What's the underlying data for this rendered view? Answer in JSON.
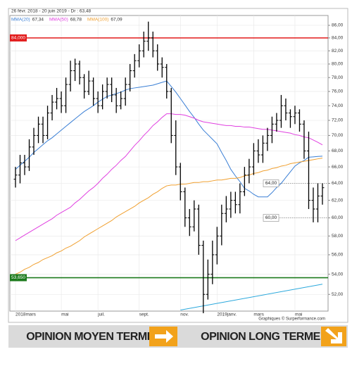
{
  "chart_data": {
    "type": "ohlc",
    "subtitle": "26 févr. 2018 - 20 juin 2019 - Dr : 63,48",
    "categories": [
      "2018mars",
      null,
      null,
      null,
      null,
      null,
      null,
      null,
      null,
      null,
      "mai",
      null,
      null,
      null,
      null,
      null,
      null,
      null,
      "juil.",
      null,
      null,
      null,
      null,
      null,
      null,
      null,
      null,
      "sept.",
      null,
      null,
      null,
      null,
      null,
      null,
      null,
      null,
      "nov.",
      null,
      null,
      null,
      null,
      null,
      null,
      null,
      "2019janv.",
      null,
      null,
      null,
      null,
      null,
      null,
      null,
      "mars",
      null,
      null,
      null,
      null,
      null,
      null,
      null,
      null,
      "mai",
      null,
      null,
      null,
      null,
      null,
      null
    ],
    "open": [
      64.5,
      65,
      66.5,
      66,
      68.5,
      70,
      71.5,
      70,
      73,
      74.5,
      75,
      74,
      77,
      79,
      80,
      78,
      76,
      77.5,
      75,
      74,
      76,
      77,
      75.5,
      74,
      75,
      77,
      79,
      80.5,
      82,
      83.5,
      84,
      82,
      80,
      79.5,
      76,
      70,
      66,
      63,
      60,
      59,
      61,
      57,
      52,
      54,
      56,
      58,
      60.5,
      61,
      62,
      61.5,
      63,
      65,
      66,
      68,
      67.5,
      69,
      70,
      71.5,
      72,
      74,
      73,
      72.5,
      73,
      71.5,
      68,
      62,
      61,
      62.5
    ],
    "high": [
      66,
      67.5,
      67.5,
      69.5,
      71,
      72.5,
      72.5,
      74,
      75.5,
      76.5,
      76,
      78,
      80.5,
      80.8,
      80.5,
      78.5,
      79,
      78,
      76,
      77,
      78,
      78,
      76.5,
      76,
      78,
      80,
      81.5,
      83,
      85,
      86.6,
      85,
      83,
      81,
      80,
      76.5,
      72,
      66.5,
      63.5,
      61,
      62,
      61.5,
      57.5,
      55.5,
      57.5,
      59,
      61.5,
      62.5,
      63,
      63,
      64,
      66,
      67,
      69,
      69.5,
      70,
      71,
      72.5,
      73,
      75.5,
      75,
      73.5,
      74,
      73.5,
      72,
      70.5,
      63.5,
      64,
      64
    ],
    "low": [
      63.5,
      64,
      65,
      65.5,
      67.5,
      69,
      69,
      69.5,
      72,
      73.5,
      73,
      73,
      76,
      77.5,
      77,
      75,
      75.5,
      74,
      73,
      73.5,
      75,
      74.5,
      73,
      73.5,
      74,
      76,
      78,
      79.5,
      81,
      82,
      81,
      79,
      78,
      75,
      69,
      65,
      62,
      59,
      58,
      58.5,
      56,
      50.2,
      51.5,
      53,
      55,
      57,
      59.5,
      60,
      60.5,
      60.5,
      62.5,
      64,
      65,
      66.5,
      66.5,
      68,
      69,
      70.5,
      71,
      72,
      71,
      71.5,
      70.5,
      67,
      61,
      59.5,
      59.5,
      61.5
    ],
    "close": [
      65,
      66.5,
      66,
      68.5,
      70,
      71.5,
      70,
      73,
      74.5,
      75,
      74,
      77,
      79,
      80,
      78,
      76,
      77.5,
      75,
      74,
      76,
      77,
      75.5,
      74,
      75,
      77,
      79,
      80.5,
      82,
      83.5,
      84,
      82,
      80,
      79.5,
      76,
      70,
      66,
      63,
      60,
      59,
      61,
      57,
      52,
      54,
      56,
      58,
      60.5,
      61,
      62,
      61.5,
      63,
      65,
      66,
      68,
      67.5,
      69,
      70,
      71.5,
      72,
      74,
      73,
      72.5,
      73,
      71.5,
      68,
      62,
      61,
      62.5,
      63.48
    ],
    "color": "#000000",
    "series": [
      {
        "name": "MMA(20)",
        "last_label": "67,34",
        "color": "#3a7fd5",
        "values": [
          65.7,
          66.2,
          66.7,
          67.2,
          67.8,
          68.3,
          68.8,
          69.3,
          69.7,
          70.2,
          70.7,
          71.2,
          71.7,
          72.2,
          72.7,
          73.2,
          73.6,
          74.0,
          74.5,
          74.9,
          75.3,
          75.5,
          75.7,
          75.9,
          76.2,
          76.4,
          76.5,
          76.6,
          76.7,
          76.8,
          76.9,
          77.1,
          77.3,
          77.5,
          76.7,
          75.9,
          75.0,
          74.1,
          73.2,
          72.4,
          71.5,
          70.7,
          70.1,
          69.5,
          68.9,
          67.8,
          66.8,
          65.7,
          64.9,
          64.2,
          63.4,
          63.1,
          62.7,
          62.4,
          62.4,
          62.4,
          62.9,
          63.5,
          64.0,
          64.7,
          65.4,
          66.1,
          66.5,
          66.8,
          67.2,
          67.25,
          67.3,
          67.34
        ]
      },
      {
        "name": "MMA(50)",
        "last_label": "68,78",
        "color": "#e040e0",
        "values": [
          57.5,
          57.8,
          58.1,
          58.4,
          58.7,
          59.0,
          59.3,
          59.6,
          59.9,
          60.3,
          60.6,
          60.9,
          61.2,
          61.7,
          62.1,
          62.6,
          63.1,
          63.5,
          64.0,
          64.6,
          65.1,
          65.7,
          66.2,
          66.8,
          67.3,
          68.0,
          68.7,
          69.3,
          70.0,
          70.6,
          71.3,
          71.8,
          72.4,
          72.9,
          72.9,
          72.8,
          72.8,
          72.7,
          72.5,
          72.3,
          72.0,
          71.8,
          71.7,
          71.6,
          71.5,
          71.4,
          71.3,
          71.3,
          71.2,
          71.2,
          71.1,
          71.1,
          71.0,
          70.9,
          70.8,
          70.8,
          70.7,
          70.6,
          70.5,
          70.4,
          70.3,
          70.1,
          70.0,
          69.8,
          69.7,
          69.4,
          69.1,
          68.78
        ]
      },
      {
        "name": "MMA(100)",
        "last_label": "67,09",
        "color": "#f0a030",
        "values": [
          54.0,
          54.2,
          54.5,
          54.7,
          55.0,
          55.2,
          55.5,
          55.7,
          55.9,
          56.2,
          56.4,
          56.7,
          56.9,
          57.2,
          57.5,
          57.9,
          58.2,
          58.5,
          58.8,
          59.1,
          59.4,
          59.7,
          60.1,
          60.4,
          60.7,
          61.0,
          61.3,
          61.7,
          62.0,
          62.3,
          62.7,
          63.0,
          63.4,
          63.7,
          63.8,
          63.8,
          63.9,
          63.9,
          64.0,
          64.1,
          64.1,
          64.2,
          64.2,
          64.3,
          64.4,
          64.4,
          64.5,
          64.6,
          64.6,
          64.7,
          64.9,
          65.0,
          65.2,
          65.3,
          65.5,
          65.6,
          65.8,
          65.9,
          66.1,
          66.2,
          66.4,
          66.5,
          66.6,
          66.7,
          66.8,
          66.9,
          67.0,
          67.09
        ]
      }
    ],
    "trendline": {
      "color": "#2aa8dc",
      "points": [
        [
          36,
          50.5
        ],
        [
          67,
          53.0
        ]
      ]
    },
    "levels": [
      {
        "value": 84,
        "label": "84,000",
        "color": "#e21b1b",
        "style": "solid"
      },
      {
        "value": 53.65,
        "label": "53,650",
        "color": "#1c7a1c",
        "style": "solid"
      },
      {
        "value": 64,
        "label": "64,00",
        "color": "#888888",
        "style": "dotted"
      },
      {
        "value": 60,
        "label": "60,00",
        "color": "#888888",
        "style": "dotted"
      }
    ],
    "ylim": [
      50.4,
      87.6
    ],
    "log": true,
    "yticks": [
      {
        "value": 52,
        "label": "52,00"
      },
      {
        "value": 54,
        "label": "54,00"
      },
      {
        "value": 56,
        "label": "56,00"
      },
      {
        "value": 58,
        "label": "58,00"
      },
      {
        "value": 60,
        "label": "60,00"
      },
      {
        "value": 62,
        "label": "62,00"
      },
      {
        "value": 64,
        "label": "64,00"
      },
      {
        "value": 66,
        "label": "66,00"
      },
      {
        "value": 68,
        "label": "68,00"
      },
      {
        "value": 70,
        "label": "70,00"
      },
      {
        "value": 72,
        "label": "72,00"
      },
      {
        "value": 74,
        "label": "74,00"
      },
      {
        "value": 76,
        "label": "76,00"
      },
      {
        "value": 78,
        "label": "78,00"
      },
      {
        "value": 80,
        "label": "80,00"
      },
      {
        "value": 82,
        "label": "82,00"
      },
      {
        "value": 84,
        "label": "84,00"
      },
      {
        "value": 86,
        "label": "86,00"
      }
    ],
    "grid": true,
    "credit": "Graphiques © Surperformance.com"
  },
  "banner": {
    "left": "OPINION MOYEN TERME",
    "right": "OPINION LONG TERME"
  }
}
